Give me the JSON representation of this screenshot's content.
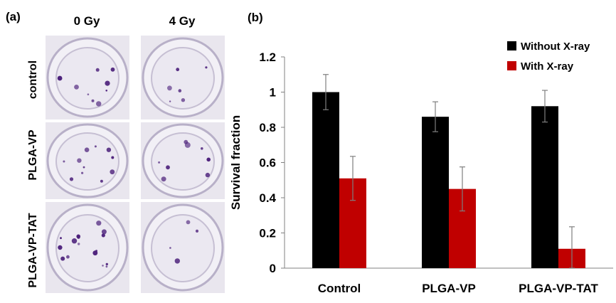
{
  "panel_a": {
    "label": "(a)",
    "columns": [
      "0 Gy",
      "4 Gy"
    ],
    "rows": [
      "control",
      "PLGA-VP",
      "PLGA-VP-TAT"
    ]
  },
  "panel_b": {
    "label": "(b)"
  },
  "colors": {
    "without": "#000000",
    "with": "#c00000",
    "dish_stain": "#4b1f7a",
    "dish_bg": "#e9e6ee"
  },
  "chart_data": {
    "type": "bar",
    "title": "",
    "xlabel": "",
    "ylabel": "Survival fraction",
    "ylim": [
      0,
      1.2
    ],
    "yticks": [
      "0",
      "0.2",
      "0.4",
      "0.6",
      "0.8",
      "1",
      "1.2"
    ],
    "categories": [
      "Control",
      "PLGA-VP",
      "PLGA-VP-TAT"
    ],
    "series": [
      {
        "name": "Without X-ray",
        "values": [
          1.0,
          0.86,
          0.92
        ],
        "errors": [
          0.1,
          0.085,
          0.09
        ]
      },
      {
        "name": "With X-ray",
        "values": [
          0.51,
          0.45,
          0.11
        ],
        "errors": [
          0.125,
          0.125,
          0.125
        ]
      }
    ],
    "legend_position": "top-right"
  }
}
